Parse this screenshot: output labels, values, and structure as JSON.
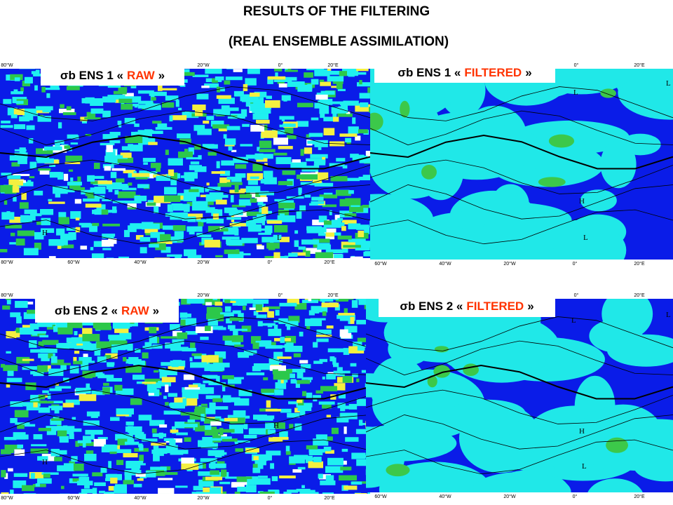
{
  "header": {
    "title_line1": "RESULTS OF THE FILTERING",
    "title_line2": "(REAL ENSEMBLE ASSIMILATION)"
  },
  "panels": [
    {
      "label": {
        "prefix": "σb ENS 1 «",
        "highlight": "RAW",
        "suffix": "»"
      },
      "top_ticks": [
        "80°W",
        "20°W",
        "0°",
        "20°E"
      ],
      "bottom_ticks": [
        "80°W",
        "60°W",
        "40°W",
        "20°W",
        "0°",
        "20°E"
      ],
      "symbols": [
        "H",
        "L"
      ]
    },
    {
      "label": {
        "prefix": "σb ENS 1 «",
        "highlight": "FILTERED",
        "suffix": "»"
      },
      "top_ticks": [
        "0°",
        "20°E"
      ],
      "bottom_ticks": [
        "60°W",
        "40°W",
        "20°W",
        "0°",
        "20°E"
      ],
      "symbols": [
        "L",
        "L",
        "H",
        "L"
      ]
    },
    {
      "label": {
        "prefix": "σb ENS 2 «",
        "highlight": "RAW",
        "suffix": "»"
      },
      "top_ticks": [
        "80°W",
        "20°W",
        "0°",
        "20°E"
      ],
      "bottom_ticks": [
        "80°W",
        "60°W",
        "40°W",
        "20°W",
        "0°",
        "20°E"
      ],
      "symbols": [
        "H",
        "H"
      ]
    },
    {
      "label": {
        "prefix": "σb ENS 2 «",
        "highlight": "FILTERED",
        "suffix": "»"
      },
      "top_ticks": [
        "0°",
        "20°E"
      ],
      "bottom_ticks": [
        "60°W",
        "40°W",
        "20°W",
        "0°",
        "20°E"
      ],
      "symbols": [
        "L",
        "L",
        "H",
        "L"
      ]
    }
  ]
}
